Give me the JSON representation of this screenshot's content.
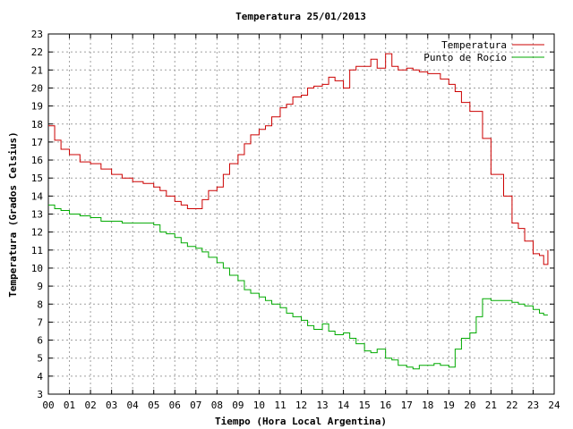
{
  "chart_data": {
    "type": "line",
    "title": "Temperatura 25/01/2013",
    "xlabel": "Tiempo (Hora Local Argentina)",
    "ylabel": "Temperatura (Grados Celsius)",
    "xlim": [
      0,
      24
    ],
    "ylim": [
      3,
      23
    ],
    "grid": true,
    "legend": "top-right",
    "x_ticks": [
      "00",
      "01",
      "02",
      "03",
      "04",
      "05",
      "06",
      "07",
      "08",
      "09",
      "10",
      "11",
      "12",
      "13",
      "14",
      "15",
      "16",
      "17",
      "18",
      "19",
      "20",
      "21",
      "22",
      "23",
      "24"
    ],
    "y_ticks": [
      3,
      4,
      5,
      6,
      7,
      8,
      9,
      10,
      11,
      12,
      13,
      14,
      15,
      16,
      17,
      18,
      19,
      20,
      21,
      22,
      23
    ],
    "series": [
      {
        "name": "Temperatura",
        "color": "#cc0000",
        "x": [
          0,
          0.3,
          0.6,
          1,
          1.5,
          2,
          2.5,
          3,
          3.5,
          4,
          4.5,
          5,
          5.3,
          5.6,
          6,
          6.3,
          6.6,
          7,
          7.3,
          7.6,
          8,
          8.3,
          8.6,
          9,
          9.3,
          9.6,
          10,
          10.3,
          10.6,
          11,
          11.3,
          11.6,
          12,
          12.3,
          12.6,
          13,
          13.3,
          13.6,
          14,
          14.3,
          14.6,
          15,
          15.3,
          15.6,
          16,
          16.3,
          16.6,
          17,
          17.3,
          17.6,
          18,
          18.3,
          18.6,
          19,
          19.3,
          19.6,
          20,
          20.3,
          20.6,
          21,
          21.3,
          21.6,
          22,
          22.3,
          22.6,
          23,
          23.3,
          23.5,
          23.7
        ],
        "values": [
          17.9,
          17.1,
          16.6,
          16.3,
          15.9,
          15.8,
          15.5,
          15.2,
          15.0,
          14.8,
          14.7,
          14.5,
          14.3,
          14.0,
          13.7,
          13.5,
          13.3,
          13.3,
          13.8,
          14.3,
          14.5,
          15.2,
          15.8,
          16.3,
          16.9,
          17.4,
          17.7,
          17.9,
          18.4,
          18.9,
          19.1,
          19.5,
          19.6,
          20.0,
          20.1,
          20.2,
          20.6,
          20.4,
          20.0,
          21.0,
          21.2,
          21.2,
          21.6,
          21.1,
          21.9,
          21.2,
          21.0,
          21.1,
          21.0,
          20.9,
          20.8,
          20.8,
          20.5,
          20.2,
          19.8,
          19.2,
          18.7,
          18.7,
          17.2,
          15.2,
          15.2,
          14.0,
          12.5,
          12.2,
          11.5,
          10.8,
          10.7,
          10.2,
          11.0
        ]
      },
      {
        "name": "Punto de Rocío",
        "color": "#00aa00",
        "x": [
          0,
          0.3,
          0.6,
          1,
          1.5,
          2,
          2.5,
          3,
          3.5,
          4,
          4.5,
          5,
          5.3,
          5.6,
          6,
          6.3,
          6.6,
          7,
          7.3,
          7.6,
          8,
          8.3,
          8.6,
          9,
          9.3,
          9.6,
          10,
          10.3,
          10.6,
          11,
          11.3,
          11.6,
          12,
          12.3,
          12.6,
          13,
          13.3,
          13.6,
          14,
          14.3,
          14.6,
          15,
          15.3,
          15.6,
          16,
          16.3,
          16.6,
          17,
          17.3,
          17.6,
          18,
          18.3,
          18.6,
          19,
          19.3,
          19.6,
          20,
          20.3,
          20.6,
          21,
          21.3,
          21.6,
          22,
          22.3,
          22.6,
          23,
          23.3,
          23.5,
          23.7
        ],
        "values": [
          13.5,
          13.3,
          13.2,
          13.0,
          12.9,
          12.8,
          12.6,
          12.6,
          12.5,
          12.5,
          12.5,
          12.4,
          12.0,
          11.9,
          11.7,
          11.4,
          11.2,
          11.1,
          10.9,
          10.6,
          10.3,
          10.0,
          9.6,
          9.3,
          8.8,
          8.6,
          8.4,
          8.2,
          8.0,
          7.8,
          7.5,
          7.3,
          7.1,
          6.8,
          6.6,
          6.9,
          6.5,
          6.3,
          6.4,
          6.1,
          5.8,
          5.4,
          5.3,
          5.5,
          5.0,
          4.9,
          4.6,
          4.5,
          4.4,
          4.6,
          4.6,
          4.7,
          4.6,
          4.5,
          5.5,
          6.1,
          6.4,
          7.3,
          8.3,
          8.2,
          8.2,
          8.2,
          8.1,
          8.0,
          7.9,
          7.7,
          7.5,
          7.4,
          7.4
        ]
      }
    ]
  }
}
